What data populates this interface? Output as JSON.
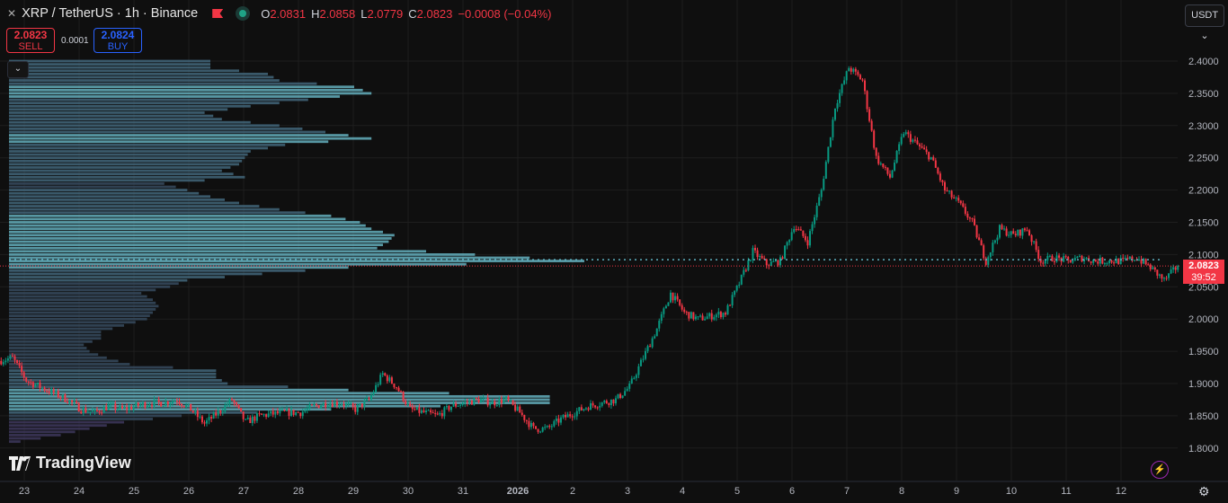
{
  "header": {
    "symbol": "XRP / TetherUS · 1h · Binance",
    "open_label": "O",
    "open": "2.0831",
    "high_label": "H",
    "high": "2.0858",
    "low_label": "L",
    "low": "2.0779",
    "close_label": "C",
    "close": "2.0823",
    "change": "−0.0008 (−0.04%)"
  },
  "trade": {
    "sell_price": "2.0823",
    "sell_label": "SELL",
    "spread": "0.0001",
    "buy_price": "2.0824",
    "buy_label": "BUY"
  },
  "collapse_icon": "chevron-down-icon",
  "currency_button": "USDT",
  "price_label": {
    "price": "2.0823",
    "countdown": "39:52"
  },
  "branding": "TradingView",
  "colors": {
    "up": "#089981",
    "down": "#f23645",
    "background": "#0f0f0f",
    "grid": "#1e1e1e",
    "poc_line": "#5fb3c4",
    "buy": "#2962ff"
  },
  "chart_data": {
    "type": "candlestick",
    "interval": "1h",
    "y_ticks": [
      "2.4000",
      "2.3500",
      "2.3000",
      "2.2500",
      "2.2000",
      "2.1500",
      "2.1000",
      "2.0500",
      "2.0000",
      "1.9500",
      "1.9000",
      "1.8500",
      "1.8000"
    ],
    "ylim": [
      1.77,
      2.445
    ],
    "x_ticks": [
      "23",
      "24",
      "25",
      "26",
      "27",
      "28",
      "29",
      "30",
      "31",
      "2026",
      "2",
      "3",
      "4",
      "5",
      "6",
      "7",
      "8",
      "9",
      "10",
      "11",
      "12"
    ],
    "last_price": 2.0823,
    "poc_price": 2.092,
    "close_path_6h": [
      1.935,
      1.94,
      1.905,
      1.895,
      1.885,
      1.875,
      1.86,
      1.855,
      1.865,
      1.86,
      1.865,
      1.87,
      1.87,
      1.875,
      1.86,
      1.838,
      1.855,
      1.875,
      1.84,
      1.85,
      1.853,
      1.855,
      1.855,
      1.865,
      1.87,
      1.87,
      1.86,
      1.875,
      1.915,
      1.895,
      1.86,
      1.855,
      1.85,
      1.865,
      1.87,
      1.875,
      1.87,
      1.875,
      1.855,
      1.83,
      1.83,
      1.845,
      1.855,
      1.865,
      1.87,
      1.875,
      1.895,
      1.94,
      1.985,
      2.04,
      2.01,
      2.0,
      2.005,
      2.01,
      2.055,
      2.105,
      2.085,
      2.09,
      2.145,
      2.12,
      2.2,
      2.33,
      2.39,
      2.37,
      2.25,
      2.22,
      2.29,
      2.27,
      2.25,
      2.2,
      2.18,
      2.15,
      2.09,
      2.14,
      2.13,
      2.14,
      2.09,
      2.095,
      2.09,
      2.095,
      2.09,
      2.09,
      2.09,
      2.095,
      2.08,
      2.06,
      2.0823
    ],
    "volume_profile": {
      "price_step": 0.01,
      "top_price": 2.4,
      "relative_volume": [
        0.35,
        0.35,
        0.45,
        0.47,
        0.6,
        0.63,
        0.52,
        0.42,
        0.34,
        0.37,
        0.47,
        0.55,
        0.63,
        0.48,
        0.42,
        0.41,
        0.4,
        0.37,
        0.41,
        0.27,
        0.31,
        0.35,
        0.4,
        0.47,
        0.56,
        0.61,
        0.63,
        0.67,
        0.66,
        0.64,
        0.81,
        1.0,
        0.59,
        0.44,
        0.31,
        0.28,
        0.23,
        0.25,
        0.26,
        0.25,
        0.24,
        0.2,
        0.16,
        0.16,
        0.13,
        0.14,
        0.17,
        0.21,
        0.36,
        0.36,
        0.38,
        0.59,
        0.94,
        0.94,
        0.56,
        0.3,
        0.2,
        0.14,
        0.09,
        0.02
      ]
    }
  }
}
